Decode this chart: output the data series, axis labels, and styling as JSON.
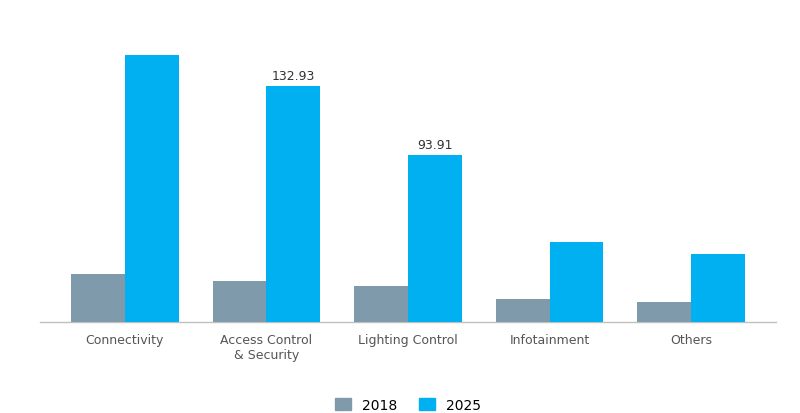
{
  "categories": [
    "Connectivity",
    "Access Control\n& Security",
    "Lighting Control",
    "Infotainment",
    "Others"
  ],
  "values_2018": [
    27,
    23,
    20,
    13,
    11
  ],
  "values_2025": [
    150,
    132.93,
    93.91,
    45,
    38
  ],
  "bar_labels_2025": [
    "",
    "132.93",
    "93.91",
    "",
    ""
  ],
  "color_2018": "#7f9aaa",
  "color_2025": "#00b0f0",
  "ylim": [
    0,
    170
  ],
  "legend_labels": [
    "2018",
    "2025"
  ],
  "bar_width": 0.38,
  "label_fontsize": 9,
  "tick_fontsize": 9,
  "legend_fontsize": 10,
  "background_color": "#ffffff",
  "spine_color": "#c0c0c0"
}
